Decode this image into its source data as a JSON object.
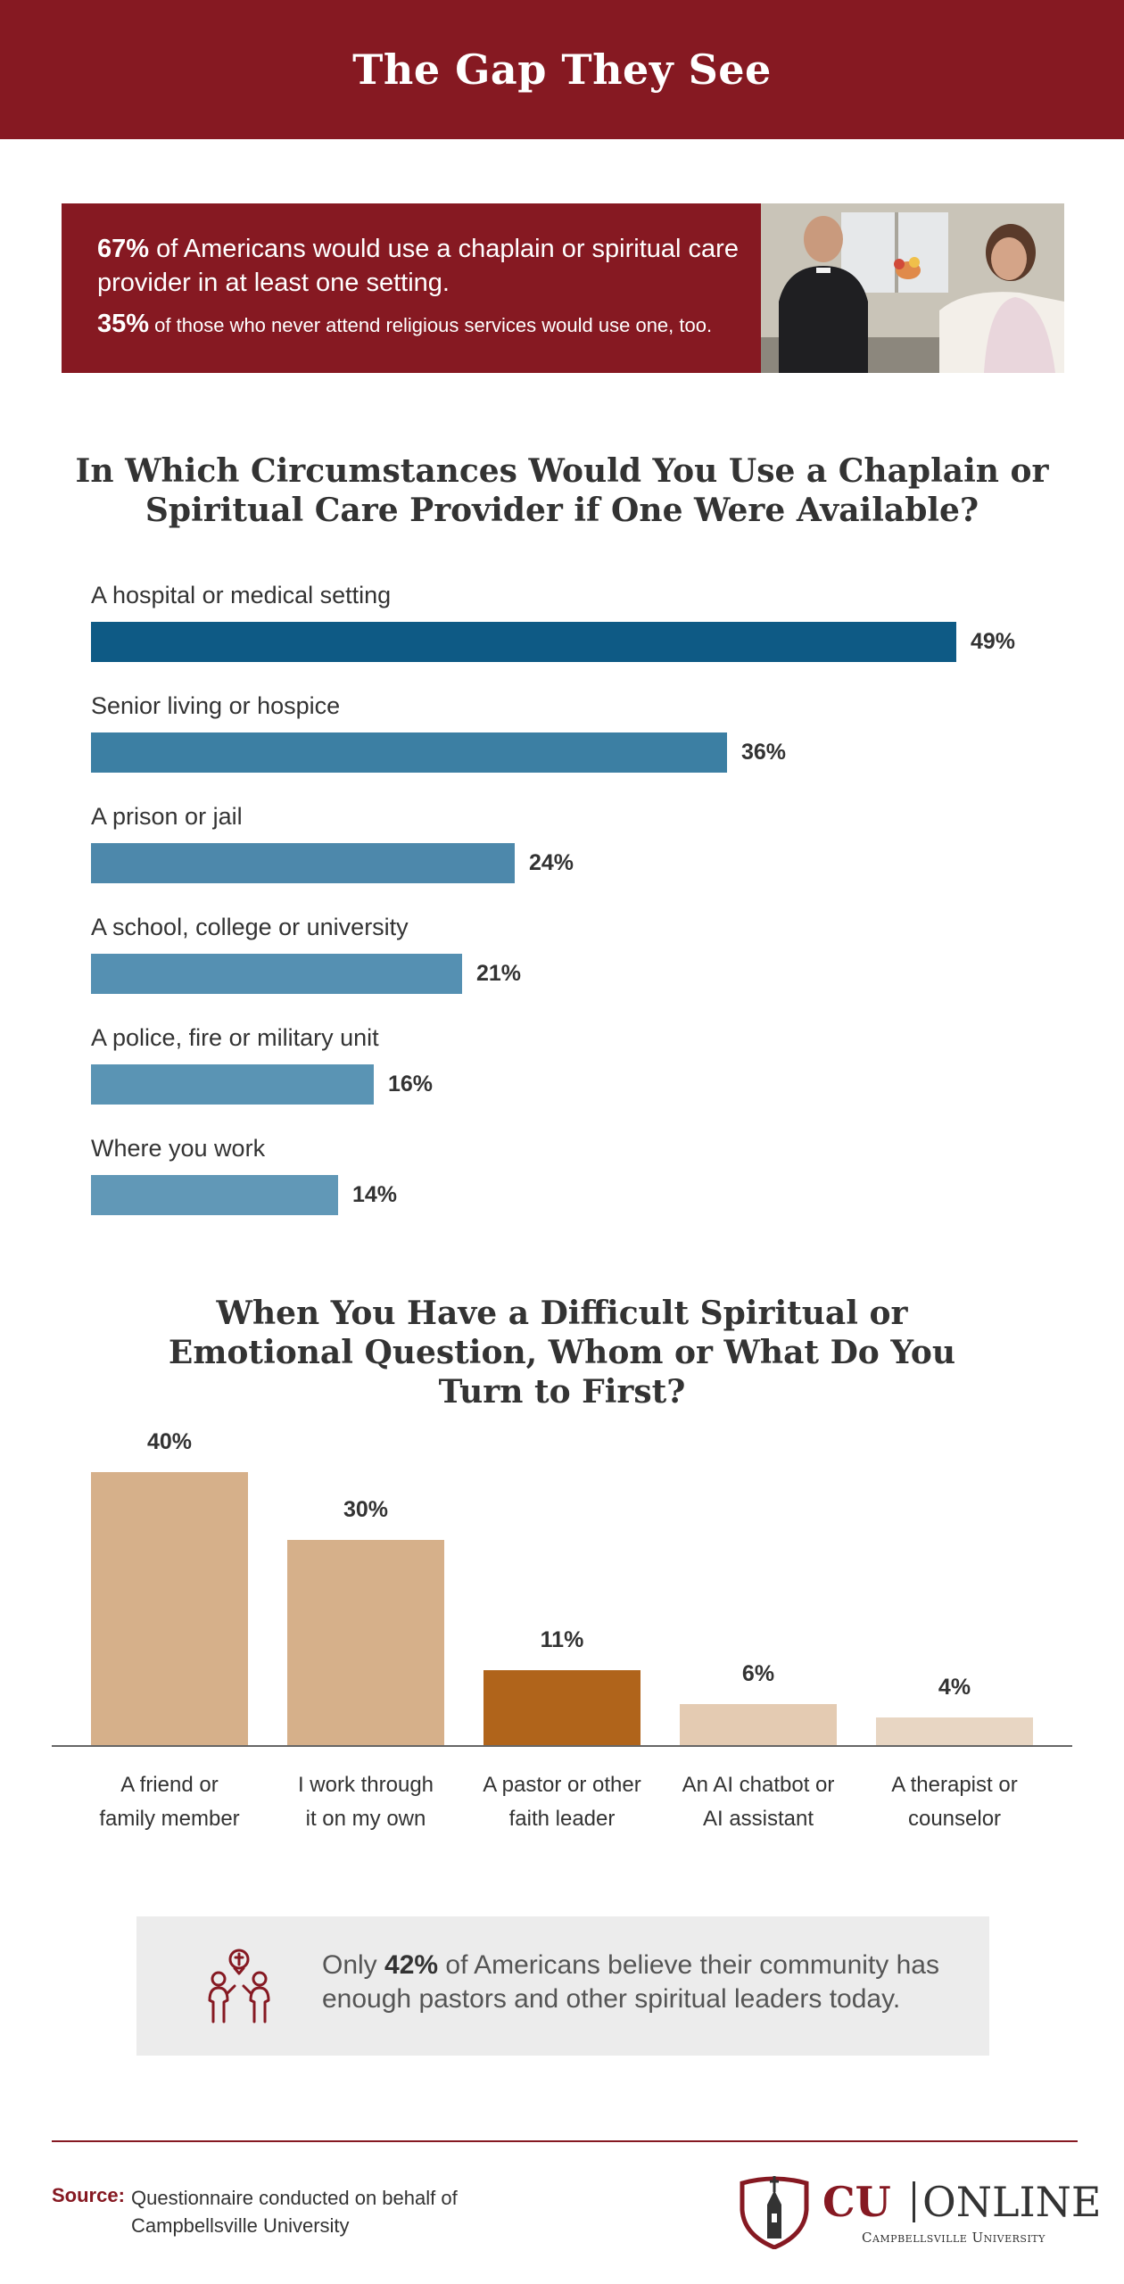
{
  "header": {
    "title": "The Gap They See"
  },
  "stat_box": {
    "stat1_pct": "67%",
    "stat1_text": " of Americans would use a chaplain or spiritual care provider in at least one setting.",
    "stat2_pct": "35%",
    "stat2_text": " of those who never attend religious services would use one, too.",
    "photo_icon": "chaplain-with-patient-photo"
  },
  "chart_data": [
    {
      "type": "bar",
      "orientation": "horizontal",
      "title": "In Which Circumstances Would You Use a Chaplain or Spiritual Care Provider if One Were Available?",
      "categories": [
        "A hospital or medical setting",
        "Senior living or hospice",
        "A prison or jail",
        "A school, college or university",
        "A police, fire or military unit",
        "Where you work"
      ],
      "values": [
        49,
        36,
        24,
        21,
        16,
        14
      ],
      "value_labels": [
        "49%",
        "36%",
        "24%",
        "21%",
        "16%",
        "14%"
      ],
      "colors": [
        "#0e5a85",
        "#3c7fa3",
        "#4d88ab",
        "#5590b2",
        "#5a94b4",
        "#6198b7"
      ],
      "xlim": [
        0,
        49
      ]
    },
    {
      "type": "bar",
      "orientation": "vertical",
      "title": "When You Have a Difficult Spiritual or Emotional Question, Whom or What Do You Turn to First?",
      "categories": [
        "A friend or family member",
        "I work through it on my own",
        "A pastor or other faith leader",
        "An AI chatbot or AI assistant",
        "A therapist or counselor"
      ],
      "category_lines": [
        [
          "A friend or",
          "family member"
        ],
        [
          "I work through",
          "it on my own"
        ],
        [
          "A pastor or other",
          "faith leader"
        ],
        [
          "An AI chatbot or",
          "AI assistant"
        ],
        [
          "A therapist or",
          "counselor"
        ]
      ],
      "values": [
        40,
        30,
        11,
        6,
        4
      ],
      "value_labels": [
        "40%",
        "30%",
        "11%",
        "6%",
        "4%"
      ],
      "colors": [
        "#d6b08a",
        "#d6b08a",
        "#b0641b",
        "#e4cbb2",
        "#e8d6c3"
      ],
      "ylim": [
        0,
        40
      ]
    }
  ],
  "callout": {
    "icon": "people-with-cross-icon",
    "text_before": "Only ",
    "pct": "42%",
    "text_after": " of Americans believe their community has enough pastors and other spiritual leaders today."
  },
  "footer": {
    "source_label": "Source:",
    "source_text": "Questionnaire conducted on behalf of Campbellsville University",
    "logo_cu": "CU",
    "logo_online": "ONLINE",
    "logo_sub": "Campbellsville University",
    "logo_icon": "university-crest-icon"
  },
  "colors": {
    "brand": "#861922",
    "dark_blue": "#0e5a85",
    "tan": "#d6b08a",
    "orange": "#b0641b"
  }
}
